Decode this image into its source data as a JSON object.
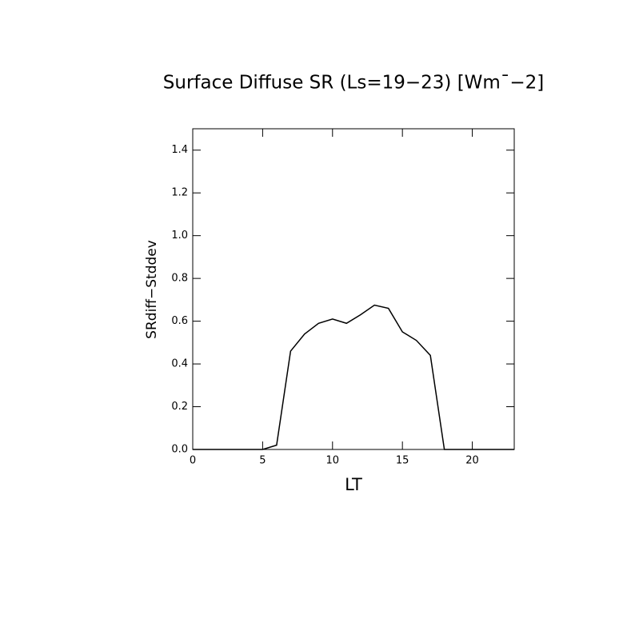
{
  "chart_data": {
    "type": "line",
    "title": "Surface Diffuse SR (Ls=19−23) [Wm¯−2]",
    "x_label": "LT",
    "y_label": "SRdiff−Stddev",
    "x": [
      0,
      1,
      2,
      3,
      4,
      5,
      6,
      7,
      8,
      9,
      10,
      11,
      12,
      13,
      14,
      15,
      16,
      17,
      18,
      19,
      20,
      21,
      22,
      23
    ],
    "values": [
      0,
      0,
      0,
      0,
      0,
      0,
      0.02,
      0.46,
      0.54,
      0.59,
      0.61,
      0.59,
      0.63,
      0.675,
      0.66,
      0.55,
      0.51,
      0.44,
      0,
      0,
      0,
      0,
      0,
      0
    ],
    "color": "#000000",
    "xlim": [
      0,
      23
    ],
    "xticks": [
      0,
      5,
      10,
      15,
      20
    ],
    "ylim": [
      0,
      1.5
    ],
    "yticks": [
      {
        "value": 0,
        "label": "0.0"
      },
      {
        "value": 0.2,
        "label": "0.2"
      },
      {
        "value": 0.4,
        "label": "0.4"
      },
      {
        "value": 0.6,
        "label": "0.6"
      },
      {
        "value": 0.8,
        "label": "0.8"
      },
      {
        "value": 1.0,
        "label": "1.0"
      },
      {
        "value": 1.2,
        "label": "1.2"
      },
      {
        "value": 1.4,
        "label": "1.4"
      }
    ],
    "grid": false
  }
}
